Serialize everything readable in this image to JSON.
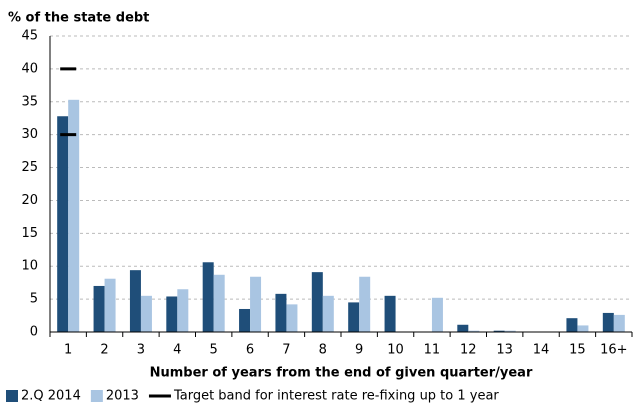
{
  "chart_data": {
    "type": "bar",
    "y_label": "% of the state debt",
    "x_label": "Number of years from the end of given quarter/year",
    "categories": [
      "1",
      "2",
      "3",
      "4",
      "5",
      "6",
      "7",
      "8",
      "9",
      "10",
      "11",
      "12",
      "13",
      "14",
      "15",
      "16+"
    ],
    "series": [
      {
        "name": "2.Q 2014",
        "color": "#1f4e79",
        "values": [
          32.8,
          7.0,
          9.4,
          5.4,
          10.6,
          3.5,
          5.8,
          9.1,
          4.5,
          5.5,
          0,
          1.1,
          0.2,
          0,
          2.1,
          2.9
        ]
      },
      {
        "name": "2013",
        "color": "#a9c5e2",
        "values": [
          35.3,
          8.1,
          5.5,
          6.5,
          8.7,
          8.4,
          4.2,
          5.5,
          8.4,
          0,
          5.2,
          0.2,
          0.2,
          0,
          1.0,
          2.6
        ]
      }
    ],
    "target_band": {
      "name": "Target band for interest rate re-fixing up to 1 year",
      "color": "#000000",
      "values": [
        30,
        40
      ]
    },
    "ylim": [
      0,
      45
    ],
    "yticks": [
      0,
      5,
      10,
      15,
      20,
      25,
      30,
      35,
      40,
      45
    ],
    "grid": true
  }
}
